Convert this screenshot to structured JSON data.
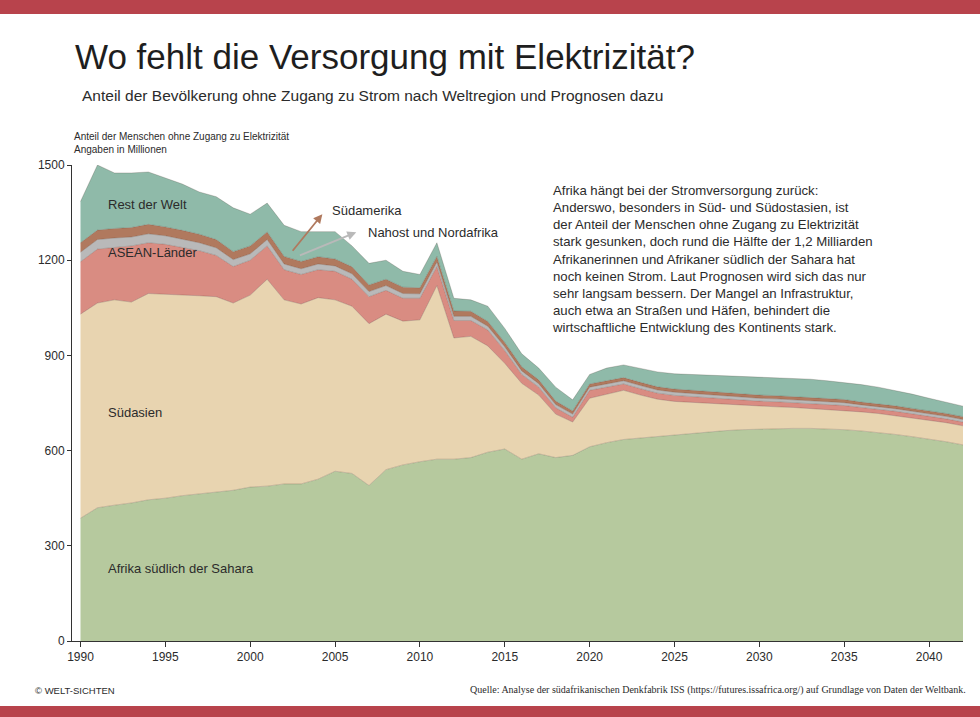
{
  "chart_data": {
    "type": "area",
    "title": "Wo fehlt die Versorgung mit Elektrizität?",
    "subtitle": "Anteil der Bevölkerung ohne Zugang zu Strom nach Weltregion und Prognosen dazu",
    "y_label": [
      "Anteil der Menschen ohne Zugang zu Elektrizität",
      "Angaben in Millionen"
    ],
    "annotation_text": [
      "Afrika hängt bei der Stromversorgung zurück:",
      "Anderswo, besonders in Süd- und Südostasien, ist",
      "der Anteil der Menschen ohne Zugang zu Elektrizität",
      "stark gesunken, doch rund die Hälfte der 1,2 Milliarden",
      "Afrikanerinnen und Afrikaner südlich der Sahara hat",
      "noch keinen Strom. Laut Prognosen wird sich das nur",
      "sehr langsam bessern. Der Mangel an Infrastruktur,",
      "auch etwa an Straßen und Häfen, behindert die",
      "wirtschaftliche Entwicklung des Kontinents stark."
    ],
    "credit": "© WELT-SICHTEN",
    "source": "Quelle: Analyse der südafrikanischen Denkfabrik ISS (https://futures.issafrica.org/) auf Grundlage von Daten der Weltbank.",
    "stacked": true,
    "grid": false,
    "x": [
      1990,
      1991,
      1992,
      1993,
      1994,
      1995,
      1996,
      1997,
      1998,
      1999,
      2000,
      2001,
      2002,
      2003,
      2004,
      2005,
      2006,
      2007,
      2008,
      2009,
      2010,
      2011,
      2012,
      2013,
      2014,
      2015,
      2016,
      2017,
      2018,
      2019,
      2020,
      2021,
      2022,
      2023,
      2024,
      2025,
      2026,
      2027,
      2028,
      2029,
      2030,
      2031,
      2032,
      2033,
      2034,
      2035,
      2036,
      2037,
      2038,
      2039,
      2040,
      2041,
      2042
    ],
    "xlim": [
      1989.5,
      2042
    ],
    "xticks": [
      1990,
      1995,
      2000,
      2005,
      2010,
      2015,
      2020,
      2025,
      2030,
      2035,
      2040
    ],
    "ylim": [
      0,
      1500
    ],
    "yticks": [
      0,
      300,
      600,
      900,
      1200,
      1500
    ],
    "series": [
      {
        "name": "Afrika südlich der Sahara",
        "color": "#b6c99e",
        "values": [
          387,
          420,
          428,
          435,
          445,
          450,
          458,
          463,
          470,
          475,
          485,
          488,
          495,
          495,
          510,
          535,
          528,
          490,
          540,
          555,
          565,
          573,
          573,
          578,
          595,
          605,
          573,
          590,
          578,
          585,
          612,
          625,
          635,
          640,
          645,
          650,
          655,
          660,
          663,
          666,
          668,
          669,
          670,
          670,
          669,
          666,
          662,
          657,
          651,
          644,
          637,
          628,
          618
        ]
      },
      {
        "name": "Südasien",
        "color": "#e8d4b0",
        "values": [
          643,
          645,
          647,
          633,
          650,
          643,
          634,
          625,
          615,
          590,
          605,
          652,
          580,
          567,
          572,
          540,
          527,
          510,
          490,
          453,
          447,
          547,
          382,
          382,
          335,
          270,
          239,
          185,
          137,
          105,
          153,
          153,
          155,
          135,
          117,
          105,
          97,
          88,
          82,
          76,
          72,
          69,
          66,
          63,
          61,
          61,
          60,
          60,
          59,
          59,
          59,
          60,
          60
        ]
      },
      {
        "name": "ASEAN-Länder",
        "color": "#d98c82",
        "values": [
          165,
          170,
          165,
          177,
          160,
          157,
          148,
          142,
          130,
          115,
          110,
          105,
          95,
          93,
          88,
          90,
          85,
          85,
          75,
          72,
          68,
          60,
          55,
          50,
          50,
          40,
          28,
          25,
          20,
          15,
          25,
          22,
          20,
          20,
          19,
          19,
          18,
          18,
          17,
          17,
          16,
          16,
          16,
          15,
          15,
          15,
          14,
          14,
          14,
          13,
          13,
          12,
          12
        ]
      },
      {
        "name": "Nahost und Nordafrika",
        "color": "#b9b9b9",
        "values": [
          30,
          30,
          30,
          28,
          28,
          27,
          26,
          25,
          24,
          22,
          20,
          20,
          18,
          18,
          18,
          17,
          17,
          16,
          15,
          15,
          14,
          14,
          13,
          13,
          12,
          12,
          11,
          11,
          10,
          10,
          10,
          10,
          10,
          10,
          10,
          10,
          10,
          10,
          9,
          9,
          9,
          9,
          9,
          9,
          9,
          9,
          8,
          8,
          8,
          8,
          8,
          8,
          8
        ]
      },
      {
        "name": "Südamerika",
        "color": "#b0795e",
        "values": [
          30,
          30,
          30,
          30,
          30,
          28,
          28,
          27,
          26,
          25,
          25,
          24,
          24,
          23,
          23,
          22,
          22,
          21,
          20,
          20,
          19,
          18,
          17,
          16,
          15,
          14,
          13,
          12,
          11,
          10,
          10,
          10,
          10,
          10,
          10,
          10,
          10,
          10,
          10,
          10,
          10,
          10,
          10,
          10,
          10,
          10,
          9,
          9,
          9,
          9,
          9,
          9,
          9
        ]
      },
      {
        "name": "Rest der Welt",
        "color": "#8fbaa9",
        "values": [
          130,
          205,
          175,
          172,
          165,
          155,
          146,
          133,
          135,
          138,
          100,
          91,
          98,
          94,
          79,
          86,
          66,
          68,
          60,
          50,
          42,
          43,
          40,
          36,
          48,
          44,
          41,
          37,
          44,
          35,
          30,
          40,
          40,
          45,
          47,
          48,
          50,
          52,
          55,
          56,
          57,
          57,
          57,
          58,
          56,
          54,
          55,
          52,
          49,
          45,
          39,
          35,
          33
        ]
      }
    ]
  }
}
